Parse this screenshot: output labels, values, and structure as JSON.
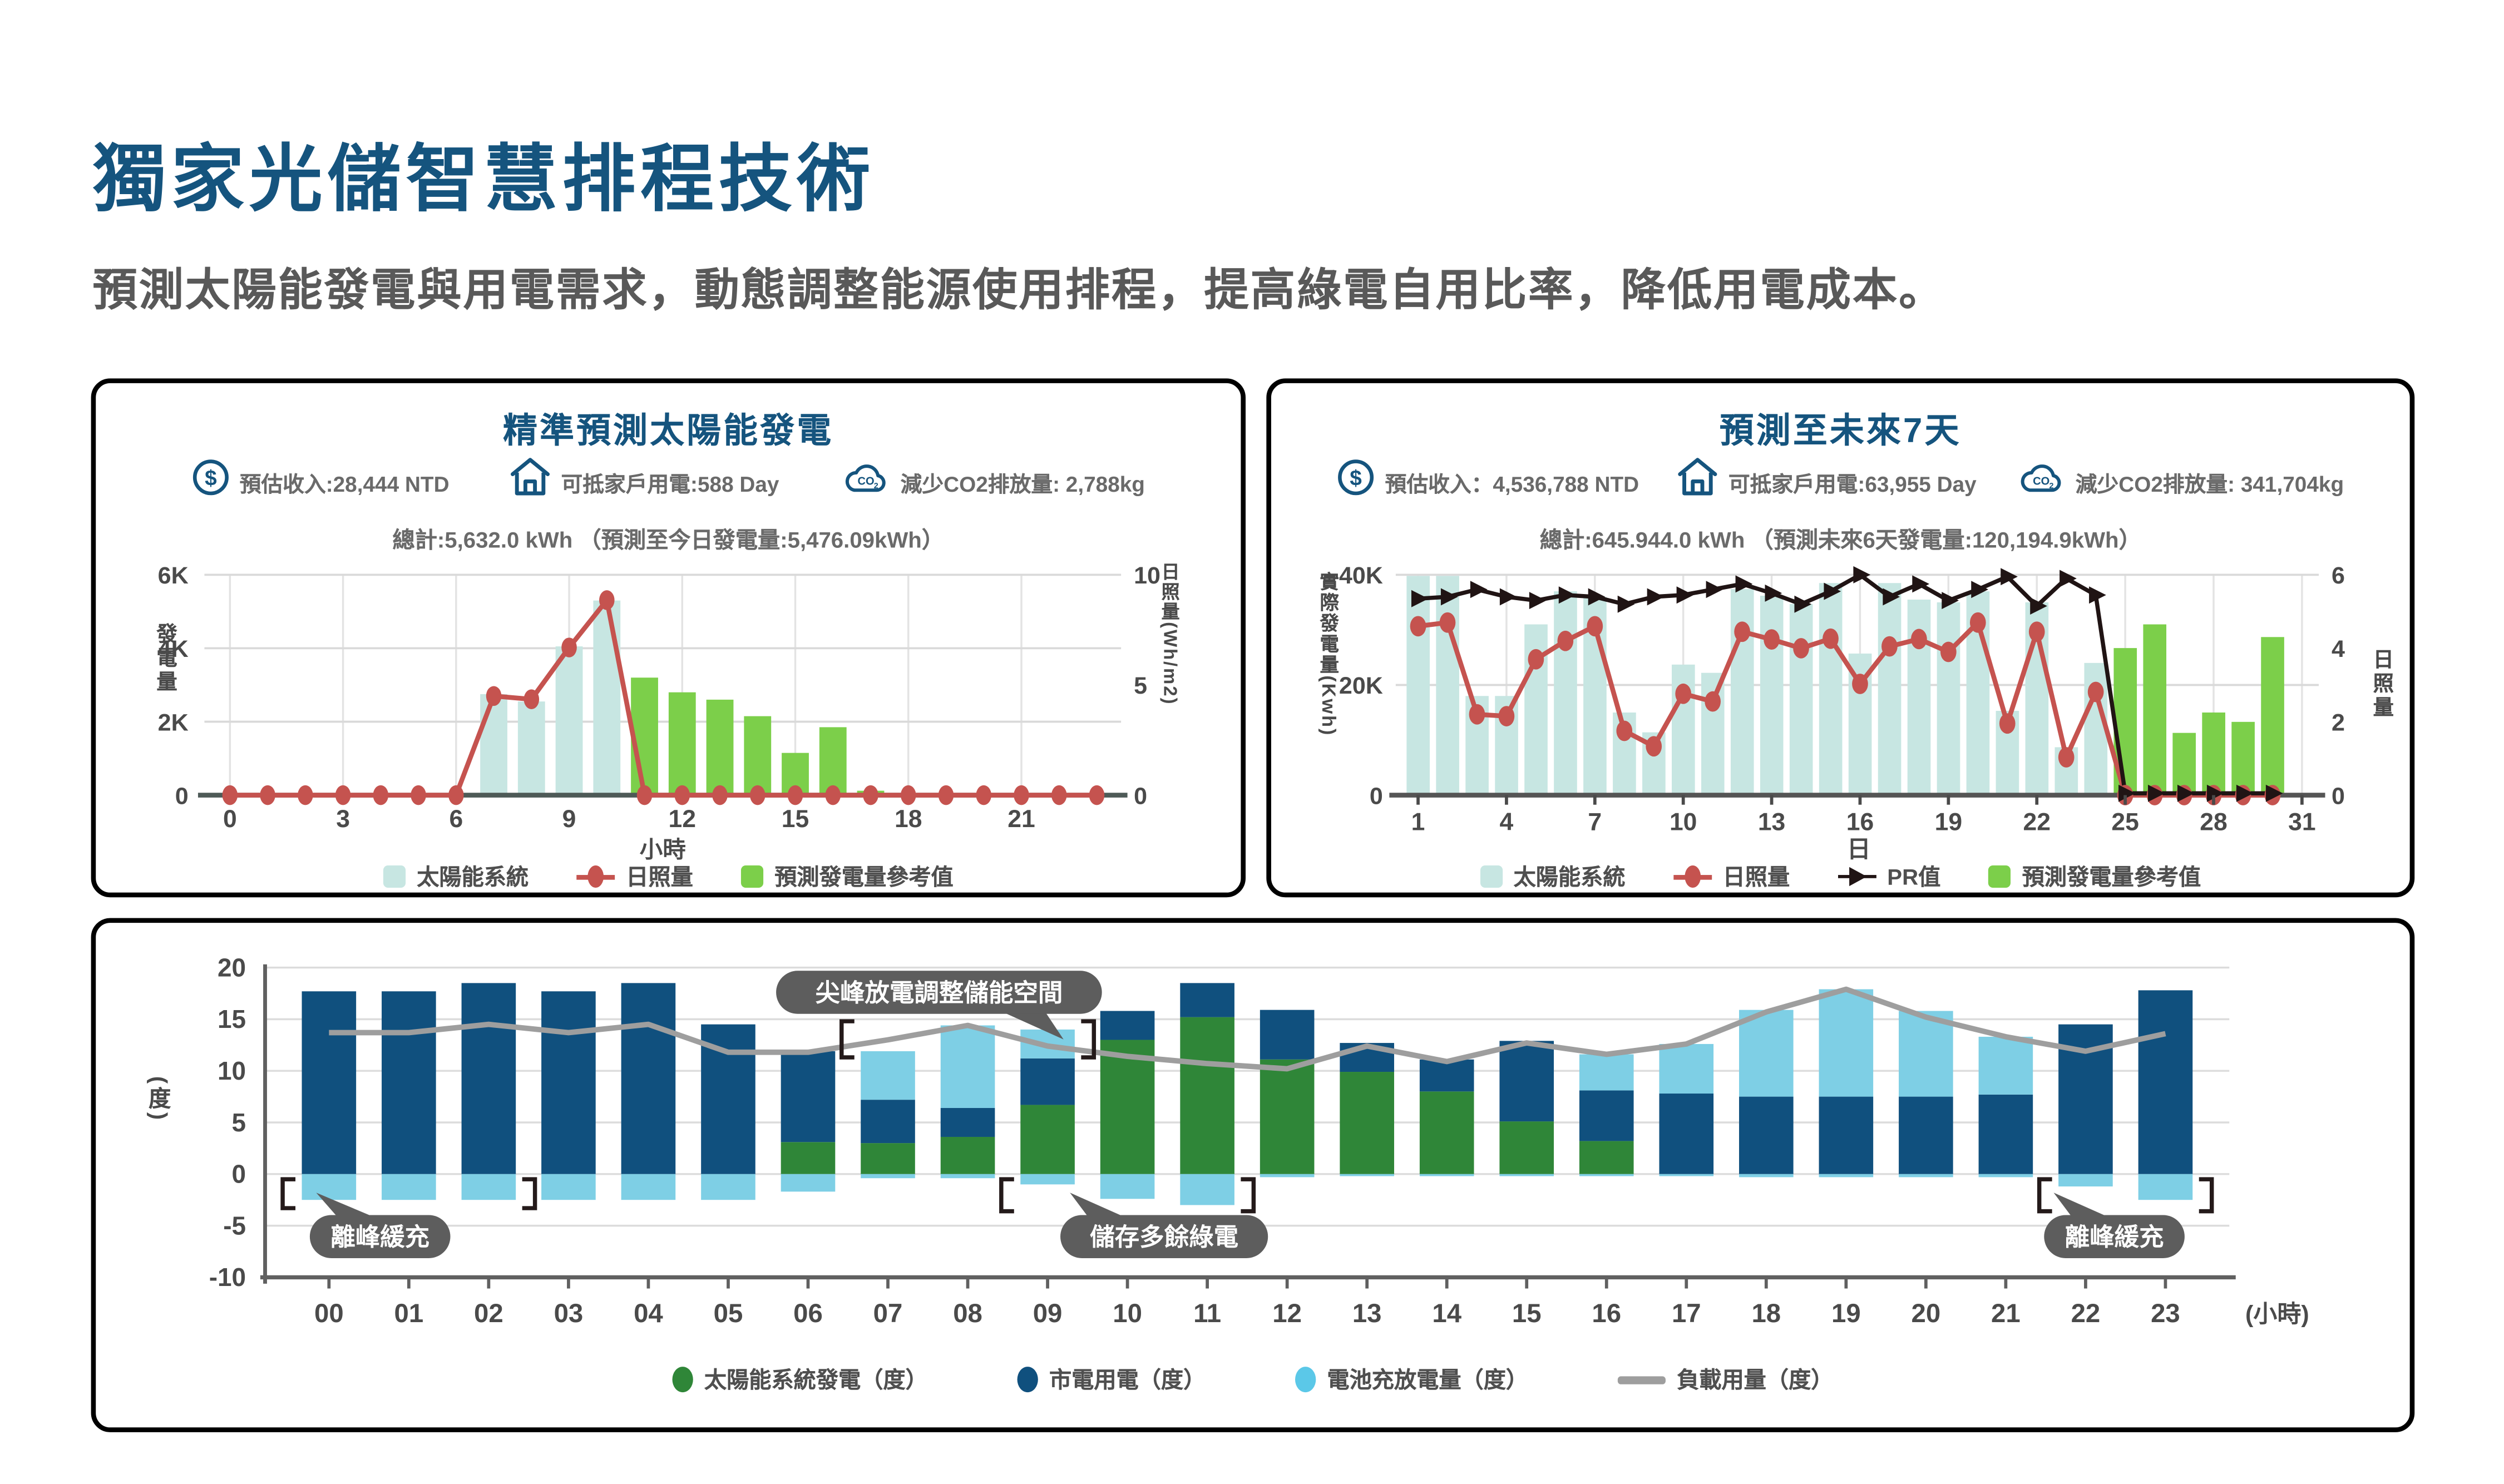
{
  "page": {
    "title": "獨家光儲智慧排程技術",
    "subtitle": "預測太陽能發電與用電需求，動態調整能源使用排程，提高綠電自用比率，降低用電成本。"
  },
  "colors": {
    "brand_blue": "#15547E",
    "text_gray": "#6A6A6A",
    "teal": "#C7E6E2",
    "bright_green": "#7CCF4A",
    "red": "#C5534F",
    "pr_black": "#201414",
    "dark_blue": "#10507E",
    "forest_green": "#2F8638",
    "light_cyan": "#7ECFE5",
    "load_gray": "#9E9E9E",
    "tooltip_gray": "#5D5D5D"
  },
  "panel_hourly": {
    "title": "精準預測太陽能發電",
    "stats": [
      {
        "icon": "dollar-circle-icon",
        "text": "預估收入:28,444 NTD"
      },
      {
        "icon": "house-icon",
        "text": "可抵家戶用電:588 Day"
      },
      {
        "icon": "co2-cloud-icon",
        "text": "減少CO2排放量: 2,788kg"
      }
    ],
    "total": "總計:5,632.0 kWh （預測至今日發電量:5,476.09kWh）"
  },
  "panel_daily": {
    "title": "預測至未來7天",
    "stats": [
      {
        "icon": "dollar-circle-icon",
        "text": "預估收入：4,536,788 NTD"
      },
      {
        "icon": "house-icon",
        "text": "可抵家戶用電:63,955 Day"
      },
      {
        "icon": "co2-cloud-icon",
        "text": "減少CO2排放量: 341,704kg"
      }
    ],
    "total": "總計:645.944.0 kWh （預測未來6天發電量:120,194.9kWh）"
  },
  "chart_data": [
    {
      "id": "hourly-solar-forecast",
      "type": "bar",
      "title": "精準預測太陽能發電",
      "xlabel": "小時",
      "x": [
        0,
        1,
        2,
        3,
        4,
        5,
        6,
        7,
        8,
        9,
        10,
        11,
        12,
        13,
        14,
        15,
        16,
        17,
        18,
        19,
        20,
        21,
        22,
        23
      ],
      "xticks": [
        0,
        3,
        6,
        9,
        12,
        15,
        18,
        21
      ],
      "left_axis": {
        "label": "發電量",
        "ticks": [
          "0",
          "2K",
          "4K",
          "6K"
        ],
        "max": 6000
      },
      "right_axis": {
        "label": "日照量(Wh/m2)",
        "ticks": [
          "0",
          "5",
          "10"
        ],
        "max": 10
      },
      "series": [
        {
          "name": "太陽能系統",
          "type": "bar",
          "axis": "left",
          "color": "#C7E6E2",
          "values": [
            0,
            0,
            0,
            0,
            0,
            0,
            0,
            2750,
            2550,
            4050,
            5300,
            0,
            0,
            0,
            0,
            0,
            0,
            0,
            0,
            0,
            0,
            0,
            0,
            0
          ]
        },
        {
          "name": "預測發電量參考值",
          "type": "bar",
          "axis": "left",
          "color": "#7CCF4A",
          "values": [
            0,
            0,
            0,
            0,
            0,
            0,
            0,
            0,
            0,
            0,
            0,
            3200,
            2800,
            2600,
            2150,
            1150,
            1850,
            120,
            60,
            0,
            0,
            0,
            0,
            0
          ]
        },
        {
          "name": "日照量",
          "type": "line",
          "axis": "right",
          "color": "#C5534F",
          "values": [
            0,
            0,
            0,
            0,
            0,
            0,
            0,
            4.5,
            4.35,
            6.7,
            8.85,
            0,
            0,
            0,
            0,
            0,
            0,
            0,
            0,
            0,
            0,
            0,
            0,
            0
          ]
        }
      ],
      "legend": [
        {
          "marker": "square",
          "color": "#C7E6E2",
          "label": "太陽能系統"
        },
        {
          "marker": "dot",
          "color": "#C5534F",
          "label": "日照量"
        },
        {
          "marker": "square",
          "color": "#7CCF4A",
          "label": "預測發電量參考值"
        }
      ]
    },
    {
      "id": "daily-forecast-31days",
      "type": "bar",
      "title": "預測至未來7天",
      "xlabel": "日",
      "x": [
        1,
        2,
        3,
        4,
        5,
        6,
        7,
        8,
        9,
        10,
        11,
        12,
        13,
        14,
        15,
        16,
        17,
        18,
        19,
        20,
        21,
        22,
        23,
        24,
        25,
        26,
        27,
        28,
        29,
        30
      ],
      "xticks": [
        1,
        4,
        7,
        10,
        13,
        16,
        19,
        22,
        25,
        28,
        31
      ],
      "left_axis": {
        "label": "實際發電量(Kwh)",
        "ticks": [
          "0",
          "20K",
          "40K"
        ],
        "max": 40000
      },
      "right_axis": {
        "label": "日照量",
        "ticks": [
          "0",
          "2",
          "4",
          "6"
        ],
        "max": 6
      },
      "series": [
        {
          "name": "太陽能系統",
          "type": "bar",
          "axis": "left",
          "color": "#C7E6E2",
          "values": [
            39800,
            39800,
            18000,
            18000,
            31000,
            37000,
            36000,
            15000,
            11400,
            23700,
            22200,
            37400,
            36200,
            34700,
            38500,
            25700,
            38500,
            35500,
            35000,
            37000,
            15300,
            35000,
            8700,
            24000,
            0,
            0,
            0,
            0,
            0,
            0
          ]
        },
        {
          "name": "預測發電量參考值",
          "type": "bar",
          "axis": "left",
          "color": "#7CCF4A",
          "values": [
            0,
            0,
            0,
            0,
            0,
            0,
            0,
            0,
            0,
            0,
            0,
            0,
            0,
            0,
            0,
            0,
            0,
            0,
            0,
            0,
            0,
            0,
            0,
            0,
            26700,
            31000,
            11300,
            15000,
            13300,
            28700
          ]
        },
        {
          "name": "日照量",
          "type": "line",
          "axis": "right",
          "color": "#C5534F",
          "values": [
            4.6,
            4.7,
            2.2,
            2.15,
            3.7,
            4.2,
            4.6,
            1.75,
            1.33,
            2.76,
            2.55,
            4.45,
            4.24,
            4.0,
            4.26,
            3.03,
            4.05,
            4.25,
            3.9,
            4.7,
            1.95,
            4.45,
            1.03,
            2.81,
            0,
            0,
            0,
            0,
            0,
            0
          ]
        },
        {
          "name": "PR值",
          "type": "line",
          "axis": "right",
          "color": "#201414",
          "values": [
            5.35,
            5.4,
            5.6,
            5.4,
            5.3,
            5.45,
            5.4,
            5.2,
            5.4,
            5.45,
            5.6,
            5.75,
            5.5,
            5.2,
            5.55,
            6.0,
            5.4,
            5.75,
            5.3,
            5.6,
            5.95,
            5.15,
            5.9,
            5.45,
            0.05,
            0.05,
            0.05,
            0.05,
            0.05,
            0.05
          ]
        }
      ],
      "legend": [
        {
          "marker": "square",
          "color": "#C7E6E2",
          "label": "太陽能系統"
        },
        {
          "marker": "dot",
          "color": "#C5534F",
          "label": "日照量"
        },
        {
          "marker": "tri",
          "color": "#201414",
          "label": "PR值"
        },
        {
          "marker": "square",
          "color": "#7CCF4A",
          "label": "預測發電量參考值"
        }
      ]
    },
    {
      "id": "daily-energy-schedule",
      "type": "stacked-bar-line",
      "ylabel": "(度)",
      "xlabel": "(小時)",
      "ylim": [
        -10,
        20
      ],
      "yticks": [
        20,
        15,
        10,
        5,
        0,
        -5,
        -10
      ],
      "hours": [
        "00",
        "01",
        "02",
        "03",
        "04",
        "05",
        "06",
        "07",
        "08",
        "09",
        "10",
        "11",
        "12",
        "13",
        "14",
        "15",
        "16",
        "17",
        "18",
        "19",
        "20",
        "21",
        "22",
        "23"
      ],
      "series": [
        {
          "name": "太陽能系統發電（度）",
          "type": "bar",
          "color": "#2F8638",
          "values": [
            0,
            0,
            0,
            0,
            0,
            0,
            3.1,
            3.0,
            3.6,
            6.7,
            13.0,
            15.2,
            11.1,
            9.9,
            8.0,
            5.1,
            3.2,
            0,
            0,
            0,
            0,
            0,
            0,
            0
          ]
        },
        {
          "name": "市電用電（度）",
          "type": "bar",
          "color": "#10507E",
          "values": [
            17.7,
            17.7,
            18.5,
            17.7,
            18.5,
            14.5,
            8.8,
            4.2,
            2.8,
            4.5,
            2.8,
            3.3,
            4.8,
            2.8,
            3.1,
            7.8,
            4.9,
            7.8,
            7.5,
            7.5,
            7.5,
            7.7,
            14.5,
            17.8
          ]
        },
        {
          "name": "電池充放電量（度）",
          "type": "bar",
          "color": "#7ECFE5",
          "discharge": [
            0,
            0,
            0,
            0,
            0,
            0,
            0,
            4.7,
            8.0,
            2.8,
            0,
            0,
            0,
            0,
            0,
            0,
            3.5,
            4.8,
            8.4,
            10.4,
            8.3,
            5.6,
            0,
            0
          ],
          "charge": [
            -2.5,
            -2.5,
            -2.5,
            -2.5,
            -2.5,
            -2.5,
            -1.7,
            -0.4,
            -0.4,
            -1.0,
            -2.4,
            -3.0,
            -0.3,
            -0.2,
            -0.2,
            -0.2,
            -0.2,
            -0.2,
            -0.3,
            -0.3,
            -0.3,
            -0.3,
            -1.2,
            -2.5
          ]
        },
        {
          "name": "負載用量（度）",
          "type": "line",
          "color": "#9E9E9E",
          "values": [
            13.7,
            13.7,
            14.5,
            13.7,
            14.5,
            11.8,
            11.8,
            13.0,
            14.4,
            12.4,
            11.4,
            10.7,
            10.2,
            12.4,
            10.9,
            12.7,
            11.6,
            12.6,
            15.7,
            17.9,
            15.2,
            13.3,
            11.9,
            13.6
          ]
        }
      ],
      "annotations": [
        {
          "text": "離峰緩充",
          "bracket_hours": [
            0,
            2
          ],
          "bracket_y": [
            -0.5,
            -3.3
          ]
        },
        {
          "text": "尖峰放電調整儲能空間",
          "bracket_hours": [
            7,
            9
          ],
          "bracket_y": [
            14.8,
            11.3
          ]
        },
        {
          "text": "儲存多餘綠電",
          "bracket_hours": [
            9,
            11
          ],
          "bracket_y": [
            -0.5,
            -3.6
          ]
        },
        {
          "text": "離峰緩充",
          "bracket_hours": [
            22,
            23
          ],
          "bracket_y": [
            -0.5,
            -3.6
          ]
        }
      ],
      "legend": [
        {
          "marker": "circle",
          "color": "#2F8638",
          "label": "太陽能系統發電（度）"
        },
        {
          "marker": "circle",
          "color": "#10507E",
          "label": "市電用電（度）"
        },
        {
          "marker": "circle",
          "color": "#5BC8E8",
          "label": "電池充放電量（度）"
        },
        {
          "marker": "line",
          "color": "#9E9E9E",
          "label": "負載用量（度）"
        }
      ]
    }
  ]
}
